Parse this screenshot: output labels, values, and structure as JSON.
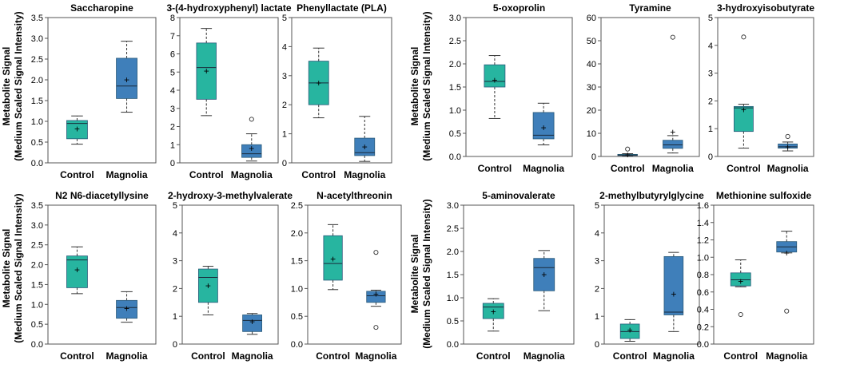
{
  "figure": {
    "y_axis_label_line1": "Metabolite Signal",
    "y_axis_label_line2": "(Medium Scaled Signal Intensity)"
  },
  "colors": {
    "control": "#27B5A0",
    "magnolia": "#3F7FBA",
    "axis": "#000000",
    "whisker": "#333333"
  },
  "chart_data": [
    {
      "type": "box",
      "title": "Saccharopine",
      "categories": [
        "Control",
        "Magnolia"
      ],
      "ylim": [
        0,
        3.5
      ],
      "yticks": [
        "0.0",
        "0.5",
        "1.0",
        "1.5",
        "2.0",
        "2.5",
        "3.0",
        "3.5"
      ],
      "series": [
        {
          "name": "Control",
          "min": 0.45,
          "q1": 0.58,
          "median": 0.95,
          "q3": 1.02,
          "max": 1.13,
          "mean": 0.82,
          "outliers": []
        },
        {
          "name": "Magnolia",
          "min": 1.22,
          "q1": 1.55,
          "median": 1.85,
          "q3": 2.52,
          "max": 2.93,
          "mean": 2.0,
          "outliers": []
        }
      ]
    },
    {
      "type": "box",
      "title": "3-(4-hydroxyphenyl) lactate",
      "categories": [
        "Control",
        "Magnolia"
      ],
      "ylim": [
        0,
        8
      ],
      "yticks": [
        "0",
        "1",
        "2",
        "3",
        "4",
        "5",
        "6",
        "7",
        "8"
      ],
      "series": [
        {
          "name": "Control",
          "min": 2.6,
          "q1": 3.5,
          "median": 5.25,
          "q3": 6.6,
          "max": 7.4,
          "mean": 5.05,
          "outliers": []
        },
        {
          "name": "Magnolia",
          "min": 0.1,
          "q1": 0.3,
          "median": 0.5,
          "q3": 1.0,
          "max": 1.6,
          "mean": 0.8,
          "outliers": [
            2.4
          ]
        }
      ]
    },
    {
      "type": "box",
      "title": "Phenyllactate (PLA)",
      "categories": [
        "Control",
        "Magnolia"
      ],
      "ylim": [
        0,
        5
      ],
      "yticks": [
        "0",
        "1",
        "2",
        "3",
        "4",
        "5"
      ],
      "series": [
        {
          "name": "Control",
          "min": 1.55,
          "q1": 2.0,
          "median": 2.75,
          "q3": 3.5,
          "max": 3.95,
          "mean": 2.75,
          "outliers": []
        },
        {
          "name": "Magnolia",
          "min": 0.05,
          "q1": 0.25,
          "median": 0.35,
          "q3": 0.85,
          "max": 1.6,
          "mean": 0.55,
          "outliers": []
        }
      ]
    },
    {
      "type": "box",
      "title": "5-oxoprolin",
      "categories": [
        "Control",
        "Magnolia"
      ],
      "ylim": [
        0,
        3.0
      ],
      "yticks": [
        "0.0",
        "0.5",
        "1.0",
        "1.5",
        "2.0",
        "2.5",
        "3.0"
      ],
      "series": [
        {
          "name": "Control",
          "min": 0.82,
          "q1": 1.5,
          "median": 1.62,
          "q3": 1.98,
          "max": 2.18,
          "mean": 1.65,
          "outliers": []
        },
        {
          "name": "Magnolia",
          "min": 0.25,
          "q1": 0.38,
          "median": 0.46,
          "q3": 0.95,
          "max": 1.15,
          "mean": 0.62,
          "outliers": []
        }
      ]
    },
    {
      "type": "box",
      "title": "Tyramine",
      "categories": [
        "Control",
        "Magnolia"
      ],
      "ylim": [
        0,
        60
      ],
      "yticks": [
        "0",
        "10",
        "20",
        "30",
        "40",
        "50",
        "60"
      ],
      "series": [
        {
          "name": "Control",
          "min": 0.2,
          "q1": 0.4,
          "median": 0.6,
          "q3": 0.9,
          "max": 1.2,
          "mean": 0.7,
          "outliers": [
            3.2
          ]
        },
        {
          "name": "Magnolia",
          "min": 1.5,
          "q1": 3.5,
          "median": 5.0,
          "q3": 7.0,
          "max": 9.0,
          "mean": 10.5,
          "outliers": [
            51.5
          ]
        }
      ]
    },
    {
      "type": "box",
      "title": "3-hydroxyisobutyrate",
      "categories": [
        "Control",
        "Magnolia"
      ],
      "ylim": [
        0,
        5
      ],
      "yticks": [
        "0",
        "1",
        "2",
        "3",
        "4",
        "5"
      ],
      "series": [
        {
          "name": "Control",
          "min": 0.3,
          "q1": 0.9,
          "median": 1.75,
          "q3": 1.8,
          "max": 1.88,
          "mean": 1.68,
          "outliers": [
            4.3
          ]
        },
        {
          "name": "Magnolia",
          "min": 0.2,
          "q1": 0.3,
          "median": 0.35,
          "q3": 0.45,
          "max": 0.52,
          "mean": 0.35,
          "outliers": [
            0.72
          ]
        }
      ]
    },
    {
      "type": "box",
      "title": "N2 N6-diacetyllysine",
      "categories": [
        "Control",
        "Magnolia"
      ],
      "ylim": [
        0,
        3.5
      ],
      "yticks": [
        "0.0",
        "0.5",
        "1.0",
        "1.5",
        "2.0",
        "2.5",
        "3.0",
        "3.5"
      ],
      "series": [
        {
          "name": "Control",
          "min": 1.27,
          "q1": 1.42,
          "median": 2.12,
          "q3": 2.22,
          "max": 2.45,
          "mean": 1.87,
          "outliers": []
        },
        {
          "name": "Magnolia",
          "min": 0.55,
          "q1": 0.65,
          "median": 0.92,
          "q3": 1.1,
          "max": 1.32,
          "mean": 0.9,
          "outliers": []
        }
      ]
    },
    {
      "type": "box",
      "title": "2-hydroxy-3-methylvalerate",
      "categories": [
        "Control",
        "Magnolia"
      ],
      "ylim": [
        0,
        5
      ],
      "yticks": [
        "0",
        "1",
        "2",
        "3",
        "4",
        "5"
      ],
      "series": [
        {
          "name": "Control",
          "min": 1.05,
          "q1": 1.5,
          "median": 2.4,
          "q3": 2.7,
          "max": 2.8,
          "mean": 2.1,
          "outliers": []
        },
        {
          "name": "Magnolia",
          "min": 0.35,
          "q1": 0.45,
          "median": 0.85,
          "q3": 1.05,
          "max": 1.1,
          "mean": 0.8,
          "outliers": []
        }
      ]
    },
    {
      "type": "box",
      "title": "N-acetylthreonin",
      "categories": [
        "Control",
        "Magnolia"
      ],
      "ylim": [
        0,
        2.5
      ],
      "yticks": [
        "0.0",
        "0.5",
        "1.0",
        "1.5",
        "2.0",
        "2.5"
      ],
      "series": [
        {
          "name": "Control",
          "min": 0.98,
          "q1": 1.15,
          "median": 1.45,
          "q3": 1.95,
          "max": 2.15,
          "mean": 1.53,
          "outliers": []
        },
        {
          "name": "Magnolia",
          "min": 0.68,
          "q1": 0.75,
          "median": 0.87,
          "q3": 0.95,
          "max": 0.97,
          "mean": 0.9,
          "outliers": [
            1.65,
            0.3
          ]
        }
      ]
    },
    {
      "type": "box",
      "title": "5-aminovalerate",
      "categories": [
        "Control",
        "Magnolia"
      ],
      "ylim": [
        0,
        3.0
      ],
      "yticks": [
        "0.0",
        "0.5",
        "1.0",
        "1.5",
        "2.0",
        "2.5",
        "3.0"
      ],
      "series": [
        {
          "name": "Control",
          "min": 0.28,
          "q1": 0.55,
          "median": 0.8,
          "q3": 0.88,
          "max": 0.98,
          "mean": 0.7,
          "outliers": []
        },
        {
          "name": "Magnolia",
          "min": 0.72,
          "q1": 1.15,
          "median": 1.65,
          "q3": 1.85,
          "max": 2.02,
          "mean": 1.5,
          "outliers": []
        }
      ]
    },
    {
      "type": "box",
      "title": "2-methylbutyrylglycine",
      "categories": [
        "Control",
        "Magnolia"
      ],
      "ylim": [
        0,
        5
      ],
      "yticks": [
        "0",
        "1",
        "2",
        "3",
        "4",
        "5"
      ],
      "series": [
        {
          "name": "Control",
          "min": 0.1,
          "q1": 0.2,
          "median": 0.45,
          "q3": 0.72,
          "max": 0.88,
          "mean": 0.5,
          "outliers": []
        },
        {
          "name": "Magnolia",
          "min": 0.45,
          "q1": 1.05,
          "median": 1.15,
          "q3": 3.15,
          "max": 3.3,
          "mean": 1.8,
          "outliers": []
        }
      ]
    },
    {
      "type": "box",
      "title": "Methionine sulfoxide",
      "categories": [
        "Control",
        "Magnolia"
      ],
      "ylim": [
        0,
        1.6
      ],
      "yticks": [
        "0.0",
        "0.2",
        "0.4",
        "0.6",
        "0.8",
        "1.0",
        "1.2",
        "1.4",
        "1.6"
      ],
      "series": [
        {
          "name": "Control",
          "min": 0.66,
          "q1": 0.67,
          "median": 0.74,
          "q3": 0.82,
          "max": 0.97,
          "mean": 0.72,
          "outliers": [
            0.34
          ]
        },
        {
          "name": "Magnolia",
          "min": 1.05,
          "q1": 1.06,
          "median": 1.12,
          "q3": 1.18,
          "max": 1.3,
          "mean": 1.05,
          "outliers": [
            0.38
          ]
        }
      ]
    }
  ]
}
